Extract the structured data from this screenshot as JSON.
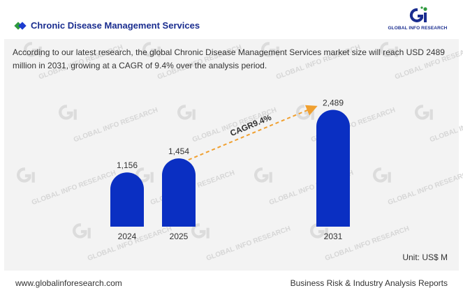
{
  "header": {
    "title": "Chronic Disease Management Services",
    "logo_text": "GLOBAL INFO RESEARCH"
  },
  "description": "According to our latest research, the global Chronic Disease Management Services market size will reach USD 2489 million in 2031, growing at a CAGR of 9.4% over the analysis period.",
  "unit_label": "Unit: US$ M",
  "watermark_text": "GLOBAL INFO RESEARCH",
  "footer": {
    "website": "www.globalinforesearch.com",
    "tagline": "Business Risk & Industry Analysis Reports"
  },
  "colors": {
    "bar": "#0a2fc2",
    "arrow": "#f0a030",
    "title": "#1a2d8f",
    "panel": "#f3f3f3"
  },
  "chart_data": {
    "type": "bar",
    "categories": [
      "2024",
      "2025",
      "2031"
    ],
    "values": [
      1156,
      1454,
      2489
    ],
    "value_labels": [
      "1,156",
      "1,454",
      "2,489"
    ],
    "annotation": "CAGR9.4%",
    "ylim": [
      0,
      2600
    ],
    "grid": false,
    "legend": "none"
  }
}
